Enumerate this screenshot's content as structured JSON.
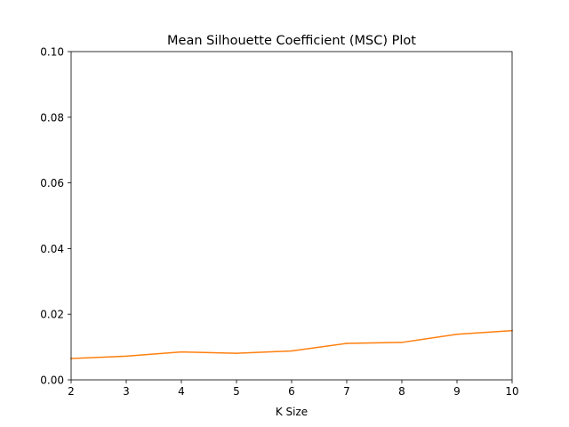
{
  "chart_data": {
    "type": "line",
    "title": "Mean Silhouette Coefficient (MSC) Plot",
    "xlabel": "K Size",
    "ylabel": "",
    "xlim": [
      2,
      10
    ],
    "ylim": [
      0.0,
      0.1
    ],
    "xticks": [
      "2",
      "3",
      "4",
      "5",
      "6",
      "7",
      "8",
      "9",
      "10"
    ],
    "yticks": [
      "0.00",
      "0.02",
      "0.04",
      "0.06",
      "0.08",
      "0.10"
    ],
    "grid": false,
    "series": [
      {
        "color": "#ff7f0e",
        "x": [
          2,
          3,
          4,
          5,
          6,
          7,
          8,
          9,
          10
        ],
        "y": [
          0.0065,
          0.0072,
          0.0085,
          0.0081,
          0.0088,
          0.0111,
          0.0114,
          0.0139,
          0.015
        ]
      }
    ]
  }
}
